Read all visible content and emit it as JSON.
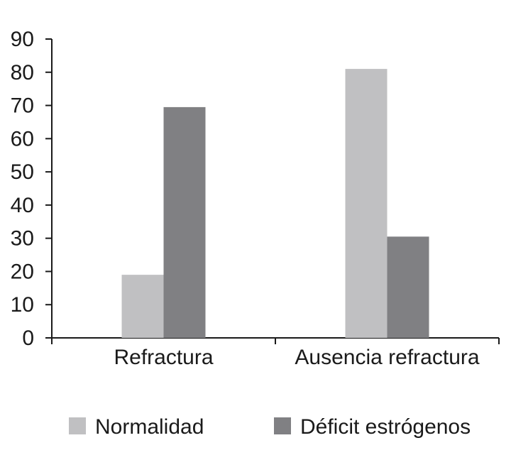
{
  "chart_data": {
    "type": "bar",
    "categories": [
      "Refractura",
      "Ausencia refractura"
    ],
    "series": [
      {
        "name": "Normalidad",
        "values": [
          19,
          81
        ],
        "color": "#c0c0c2"
      },
      {
        "name": "Déficit estrógenos",
        "values": [
          69.5,
          30.5
        ],
        "color": "#808083"
      }
    ],
    "y_ticks": [
      "0",
      "10",
      "20",
      "30",
      "40",
      "50",
      "60",
      "70",
      "80",
      "90"
    ],
    "ylim": [
      0,
      90
    ],
    "grid": false,
    "legend_position": "bottom",
    "title": "",
    "xlabel": "",
    "ylabel": ""
  }
}
